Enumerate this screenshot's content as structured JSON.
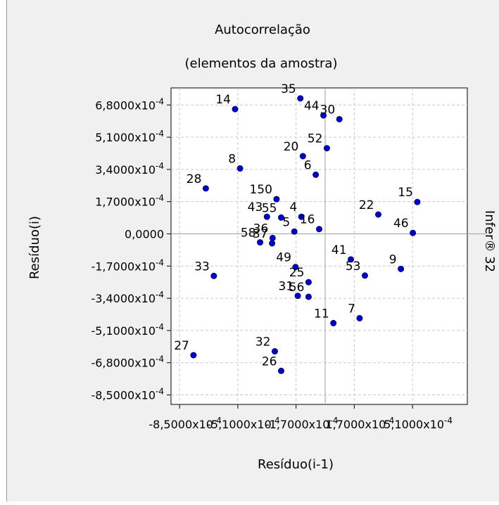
{
  "chart_data": {
    "type": "scatter",
    "title": "Autocorrelação",
    "subtitle": "(elementos da amostra)",
    "xlabel": "Resíduo(i-1)",
    "ylabel": "Resíduo(i)",
    "watermark": "Infer® 32",
    "x_tick_labels": [
      "-8,5000x10",
      "-5,1000x10",
      "-1,7000x10",
      "1,7000x10",
      "5,1000x10"
    ],
    "x_tick_values": [
      -0.00085,
      -0.00051,
      -0.00017,
      0.00017,
      0.00051
    ],
    "x_tick_exponent": "-4",
    "y_tick_labels": [
      "6,8000x10",
      "5,1000x10",
      "3,4000x10",
      "1,7000x10",
      "0,0000",
      "-1,7000x10",
      "-3,4000x10",
      "-5,1000x10",
      "-6,8000x10",
      "-8,5000x10"
    ],
    "y_tick_values": [
      0.00068,
      0.00051,
      0.00034,
      0.00017,
      0,
      -0.00017,
      -0.00034,
      -0.00051,
      -0.00068,
      -0.00085
    ],
    "y_tick_exponent": "-4",
    "xlim": [
      -0.0009,
      0.00083
    ],
    "ylim": [
      -0.0009,
      0.00077
    ],
    "grid": true,
    "point_color": "#0000cc",
    "points": [
      {
        "label": "14",
        "x": -0.000526,
        "y": 0.000658
      },
      {
        "label": "35",
        "x": -0.000145,
        "y": 0.000715
      },
      {
        "label": "44",
        "x": -1e-05,
        "y": 0.000625
      },
      {
        "label": "30",
        "x": 8.3e-05,
        "y": 0.000605
      },
      {
        "label": "52",
        "x": 1e-05,
        "y": 0.000452
      },
      {
        "label": "20",
        "x": -0.00013,
        "y": 0.00041
      },
      {
        "label": "6",
        "x": -5.5e-05,
        "y": 0.000312
      },
      {
        "label": "8",
        "x": -0.000497,
        "y": 0.000345
      },
      {
        "label": "28",
        "x": -0.000697,
        "y": 0.00024
      },
      {
        "label": "15",
        "x": 0.000538,
        "y": 0.000168
      },
      {
        "label": "22",
        "x": 0.00031,
        "y": 0.000102
      },
      {
        "label": "46",
        "x": 0.000512,
        "y": 5e-06
      },
      {
        "label": "150",
        "x": -0.000284,
        "y": 0.000183
      },
      {
        "label": "43",
        "x": -0.00034,
        "y": 9e-05
      },
      {
        "label": "55",
        "x": -0.000257,
        "y": 8.6e-05
      },
      {
        "label": "4",
        "x": -0.000139,
        "y": 9e-05
      },
      {
        "label": "16",
        "x": -3.5e-05,
        "y": 2.5e-05
      },
      {
        "label": "58",
        "x": -0.00038,
        "y": -4.5e-05
      },
      {
        "label": "37",
        "x": -0.00031,
        "y": -5e-05
      },
      {
        "label": "36",
        "x": -0.000307,
        "y": -2.2e-05
      },
      {
        "label": "5",
        "x": -0.00018,
        "y": 1.2e-05
      },
      {
        "label": "49",
        "x": -0.000173,
        "y": -0.000175
      },
      {
        "label": "25",
        "x": -9.7e-05,
        "y": -0.000255
      },
      {
        "label": "41",
        "x": 0.00015,
        "y": -0.000135
      },
      {
        "label": "53",
        "x": 0.000232,
        "y": -0.00022
      },
      {
        "label": "9",
        "x": 0.000442,
        "y": -0.000185
      },
      {
        "label": "31",
        "x": -0.00016,
        "y": -0.000327
      },
      {
        "label": "56",
        "x": -9.7e-05,
        "y": -0.000332
      },
      {
        "label": "11",
        "x": 4.8e-05,
        "y": -0.000471
      },
      {
        "label": "7",
        "x": 0.000201,
        "y": -0.000445
      },
      {
        "label": "33",
        "x": -0.00065,
        "y": -0.000222
      },
      {
        "label": "32",
        "x": -0.000294,
        "y": -0.00062
      },
      {
        "label": "26",
        "x": -0.000257,
        "y": -0.000723
      },
      {
        "label": "27",
        "x": -0.000769,
        "y": -0.00064
      }
    ]
  }
}
